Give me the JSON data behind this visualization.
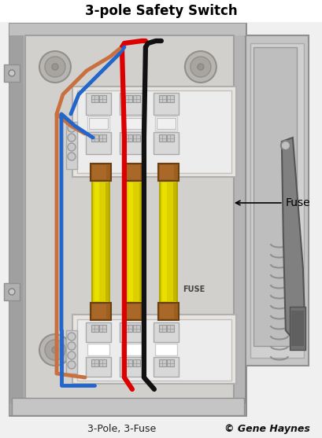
{
  "title": "3-pole Safety Switch",
  "bottom_left_label": "3-Pole, 3-Fuse",
  "bottom_right_label": "© Gene Haynes",
  "fuse_label": "Fuse",
  "fuse_text_on_box": "FUSE",
  "page_bg": "#f0f0f0",
  "enclosure_outer": "#b8b8b8",
  "enclosure_mid": "#c8c8c8",
  "enclosure_inner_bg": "#c0bfbf",
  "panel_face": "#d8d5d0",
  "wire_red": "#dd0000",
  "wire_black": "#111111",
  "wire_blue": "#2266cc",
  "wire_copper": "#c87040",
  "fuse_yellow": "#ddd000",
  "fuse_cap": "#9b6020",
  "terminal_light": "#e0e0e0",
  "terminal_dark": "#aaaaaa",
  "handle_gray": "#909090",
  "title_fontsize": 12,
  "label_fontsize": 9,
  "fuse_label_fontsize": 10
}
